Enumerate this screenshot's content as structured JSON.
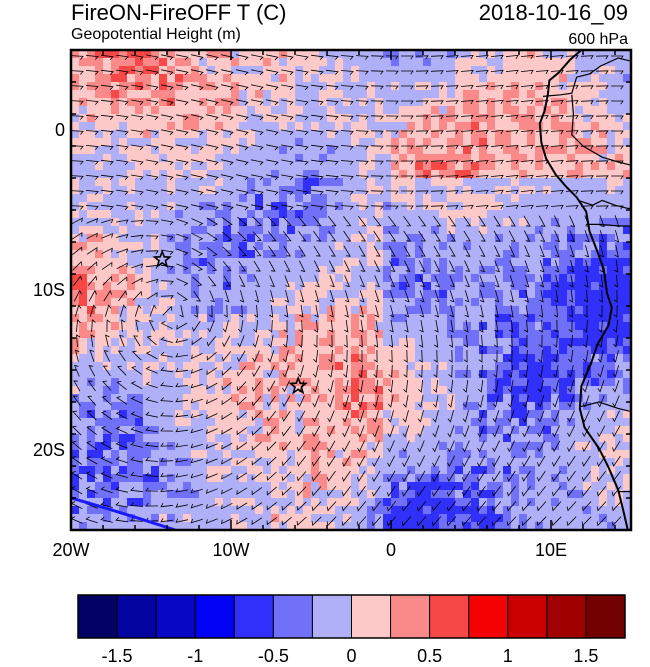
{
  "header": {
    "title": "FireON-FireOFF T (C)",
    "subtitle": "Geopotential Height (m)",
    "date": "2018-10-16_09",
    "level": "600 hPa"
  },
  "map": {
    "lon_range": [
      -20,
      15
    ],
    "lat_range": [
      -25,
      5
    ],
    "lon_ticks": [
      {
        "value": -20,
        "label": "20W"
      },
      {
        "value": -10,
        "label": "10W"
      },
      {
        "value": 0,
        "label": "0"
      },
      {
        "value": 10,
        "label": "10E"
      }
    ],
    "lat_ticks": [
      {
        "value": 0,
        "label": "0"
      },
      {
        "value": -10,
        "label": "10S"
      },
      {
        "value": -20,
        "label": "20S"
      }
    ],
    "markers": [
      {
        "lon": -14.3,
        "lat": -8.1,
        "symbol": "star"
      },
      {
        "lon": -5.8,
        "lat": -16.0,
        "symbol": "star"
      }
    ],
    "coastline": [
      [
        11.9,
        5
      ],
      [
        11.2,
        4.4
      ],
      [
        10.5,
        3.6
      ],
      [
        9.9,
        3.1
      ],
      [
        9.8,
        2.2
      ],
      [
        9.6,
        1.2
      ],
      [
        9.3,
        0.4
      ],
      [
        9.4,
        -0.8
      ],
      [
        9.7,
        -1.8
      ],
      [
        10.3,
        -2.8
      ],
      [
        11.0,
        -3.6
      ],
      [
        11.6,
        -4.2
      ],
      [
        12.2,
        -5.1
      ],
      [
        12.4,
        -6.3
      ],
      [
        12.9,
        -7.6
      ],
      [
        13.3,
        -8.7
      ],
      [
        13.5,
        -10.2
      ],
      [
        13.8,
        -11.1
      ],
      [
        13.6,
        -12.2
      ],
      [
        12.9,
        -13.4
      ],
      [
        12.5,
        -14.6
      ],
      [
        11.9,
        -16.0
      ],
      [
        11.8,
        -17.4
      ],
      [
        12.1,
        -18.6
      ],
      [
        13.0,
        -19.9
      ],
      [
        13.6,
        -21.1
      ],
      [
        14.2,
        -22.5
      ],
      [
        14.5,
        -23.7
      ],
      [
        14.8,
        -25
      ]
    ],
    "borders": [
      [
        [
          9.5,
          2.1
        ],
        [
          10.6,
          2.2
        ],
        [
          11.3,
          2.3
        ],
        [
          11.6,
          3.3
        ],
        [
          12.4,
          3.5
        ],
        [
          13.1,
          4.0
        ],
        [
          14.2,
          4.5
        ],
        [
          15,
          4.3
        ]
      ],
      [
        [
          11.3,
          2.2
        ],
        [
          11.4,
          1.0
        ],
        [
          11.3,
          -0.3
        ],
        [
          12.0,
          -1.0
        ],
        [
          13.2,
          -1.7
        ],
        [
          14.2,
          -2.0
        ],
        [
          15,
          -2.2
        ]
      ],
      [
        [
          11.7,
          -4.4
        ],
        [
          12.6,
          -4.7
        ],
        [
          13.2,
          -4.4
        ],
        [
          14.0,
          -4.7
        ],
        [
          14.8,
          -4.9
        ],
        [
          15,
          -4.9
        ]
      ],
      [
        [
          12.2,
          -5.9
        ],
        [
          13.0,
          -5.9
        ],
        [
          14.3,
          -6.0
        ],
        [
          15,
          -6.0
        ]
      ],
      [
        [
          11.8,
          -17.3
        ],
        [
          13.0,
          -17.0
        ],
        [
          14.2,
          -17.4
        ],
        [
          15,
          -17.6
        ]
      ],
      [
        [
          14.2,
          -22.6
        ],
        [
          15,
          -22.6
        ]
      ]
    ],
    "fields": {
      "temperature_difference": "shaded",
      "wind": "barbs"
    }
  },
  "colorbar": {
    "colors": [
      "#020265",
      "#0404a0",
      "#0707c5",
      "#0202f5",
      "#3030fa",
      "#7070f8",
      "#b0b0f8",
      "#fcc8c8",
      "#fa8a8a",
      "#f74848",
      "#f70202",
      "#c80000",
      "#a00000",
      "#730000"
    ],
    "labels": [
      {
        "index": 1,
        "text": "-1.5"
      },
      {
        "index": 3,
        "text": "-1"
      },
      {
        "index": 5,
        "text": "-0.5"
      },
      {
        "index": 7,
        "text": "0"
      },
      {
        "index": 9,
        "text": "0.5"
      },
      {
        "index": 11,
        "text": "1"
      },
      {
        "index": 13,
        "text": "1.5"
      }
    ]
  }
}
